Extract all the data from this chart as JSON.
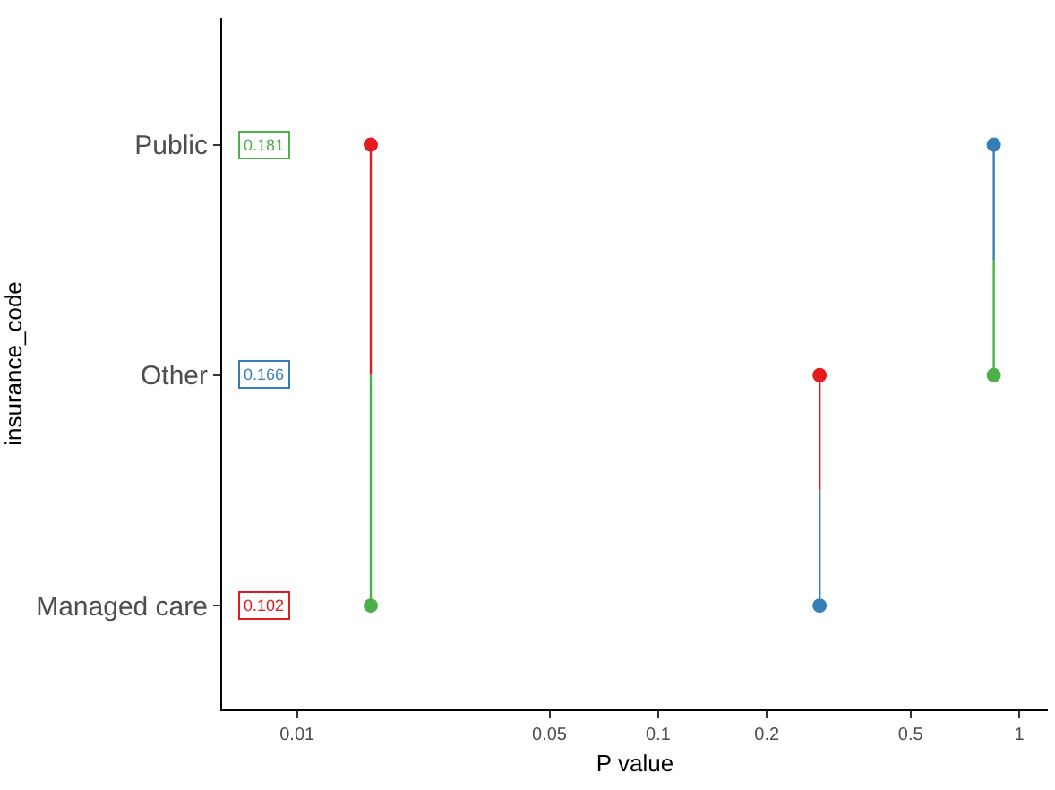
{
  "chart_data": {
    "type": "line",
    "orientation": "horizontal",
    "log": "x",
    "xlabel": "P value",
    "ylabel": "insurance_code",
    "categories": [
      "Public",
      null,
      "Other",
      null,
      "Managed care"
    ],
    "xlim": [
      0.0062,
      1.2
    ],
    "xticks": [
      0.01,
      0.05,
      0.1,
      0.2,
      0.5,
      1
    ],
    "annotations": [
      "0.181",
      "0.166",
      "0.102"
    ],
    "colors": [
      "#4daf4a",
      "#377eb8",
      "#e41a1c"
    ],
    "series": [
      {
        "color": "#e41a1c",
        "marker": "none",
        "values": [
          0.016,
          0.016,
          0.016,
          null,
          null
        ]
      },
      {
        "color": "#4daf4a",
        "marker": "none",
        "values": [
          null,
          null,
          0.016,
          0.016,
          0.016
        ]
      },
      {
        "color": "#e41a1c",
        "marker": "none",
        "values": [
          null,
          null,
          0.28,
          0.28,
          null
        ]
      },
      {
        "color": "#377eb8",
        "marker": "none",
        "values": [
          null,
          null,
          null,
          0.28,
          0.28
        ]
      },
      {
        "color": "#377eb8",
        "marker": "none",
        "values": [
          0.85,
          0.85,
          null,
          null,
          null
        ]
      },
      {
        "color": "#4daf4a",
        "marker": "none",
        "values": [
          null,
          0.85,
          0.85,
          null,
          null
        ]
      },
      {
        "type": "scatter",
        "color": "#e41a1c",
        "values": [
          0.016,
          null,
          0.28,
          null,
          null
        ]
      },
      {
        "type": "scatter",
        "color": "#4daf4a",
        "values": [
          null,
          null,
          0.85,
          null,
          0.016
        ]
      },
      {
        "type": "scatter",
        "color": "#377eb8",
        "values": [
          0.85,
          null,
          null,
          null,
          0.28
        ]
      }
    ],
    "marker": "circle",
    "grid": false
  }
}
